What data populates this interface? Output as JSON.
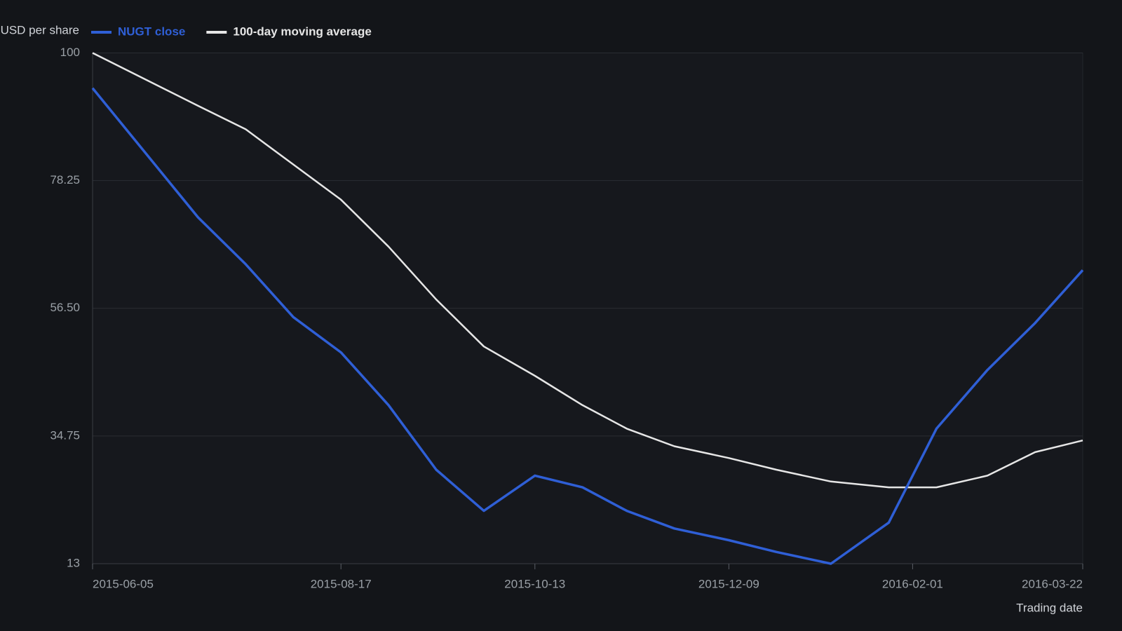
{
  "chart_data": {
    "type": "line",
    "y_axis_label": "USD per share",
    "x_axis_label": "Trading date",
    "x": [
      "2015-06-05",
      "2015-07-06",
      "2015-07-20",
      "2015-08-03",
      "2015-08-17",
      "2015-08-31",
      "2015-09-14",
      "2015-09-28",
      "2015-10-13",
      "2015-10-27",
      "2015-11-09",
      "2015-11-23",
      "2015-12-09",
      "2015-12-23",
      "2016-01-08",
      "2016-01-25",
      "2016-02-08",
      "2016-02-23",
      "2016-03-08",
      "2016-03-22"
    ],
    "series": [
      {
        "name": "NUGT close",
        "color": "#2f5fd6",
        "values": [
          94,
          72,
          64,
          55,
          49,
          40,
          29,
          22,
          28,
          26,
          22,
          19,
          17,
          15,
          13,
          20,
          36,
          46,
          54,
          63
        ]
      },
      {
        "name": "100-day moving average",
        "color": "#e6e6e6",
        "values": [
          100,
          91,
          87,
          81,
          75,
          67,
          58,
          50,
          45,
          40,
          36,
          33,
          31,
          29,
          27,
          26,
          26,
          28,
          32,
          34
        ]
      }
    ],
    "xlim": [
      "2015-06-05",
      "2016-03-22"
    ],
    "xticks": [
      "2015-06-05",
      "2015-08-17",
      "2015-10-13",
      "2015-12-09",
      "2016-02-01",
      "2016-03-22"
    ],
    "ylim": [
      13,
      100
    ],
    "yticks": [
      13,
      34.75,
      {
        "value": 56.5,
        "label": "56.50"
      },
      78.25,
      100
    ],
    "grid": true
  }
}
